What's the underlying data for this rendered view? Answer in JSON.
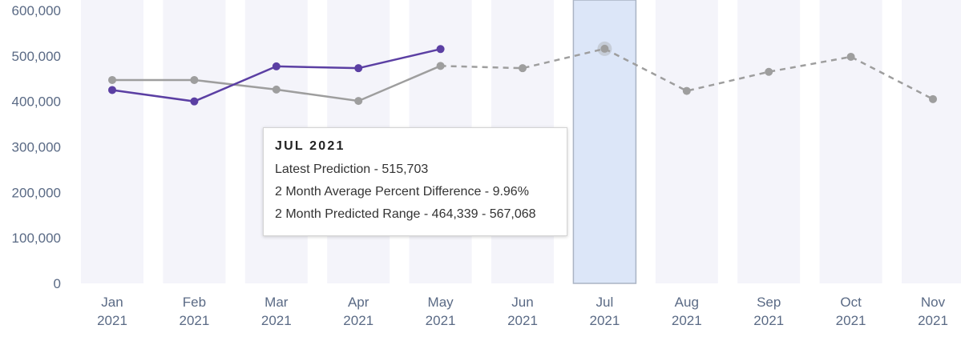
{
  "chart_data": {
    "type": "line",
    "categories": [
      {
        "month": "Jan",
        "year": "2021"
      },
      {
        "month": "Feb",
        "year": "2021"
      },
      {
        "month": "Mar",
        "year": "2021"
      },
      {
        "month": "Apr",
        "year": "2021"
      },
      {
        "month": "May",
        "year": "2021"
      },
      {
        "month": "Jun",
        "year": "2021"
      },
      {
        "month": "Jul",
        "year": "2021"
      },
      {
        "month": "Aug",
        "year": "2021"
      },
      {
        "month": "Sep",
        "year": "2021"
      },
      {
        "month": "Oct",
        "year": "2021"
      },
      {
        "month": "Nov",
        "year": "2021"
      }
    ],
    "y_ticks": [
      "0",
      "100,000",
      "200,000",
      "300,000",
      "400,000",
      "500,000",
      "600,000"
    ],
    "ylim": [
      0,
      600000
    ],
    "series": [
      {
        "color": "#5b3fa3",
        "dashed": false,
        "values": [
          425000,
          400000,
          477000,
          473000,
          515000,
          null,
          null,
          null,
          null,
          null,
          null
        ]
      },
      {
        "color": "#9e9e9e",
        "dashed": false,
        "values": [
          447000,
          447000,
          426000,
          401000,
          478000,
          null,
          null,
          null,
          null,
          null,
          null
        ]
      },
      {
        "color": "#9e9e9e",
        "dashed": true,
        "values": [
          null,
          null,
          null,
          null,
          478000,
          473000,
          515703,
          423000,
          465000,
          498000,
          405000
        ]
      }
    ],
    "highlight_index": 6,
    "colors": {
      "band": "#f4f4fa",
      "highlight": "#dce6f8",
      "highlight_border": "#aab4c4"
    }
  },
  "tooltip": {
    "title": "JUL 2021",
    "line1": "Latest Prediction - 515,703",
    "line2": "2 Month Average Percent Difference - 9.96%",
    "line3": "2 Month Predicted Range - 464,339 - 567,068"
  }
}
